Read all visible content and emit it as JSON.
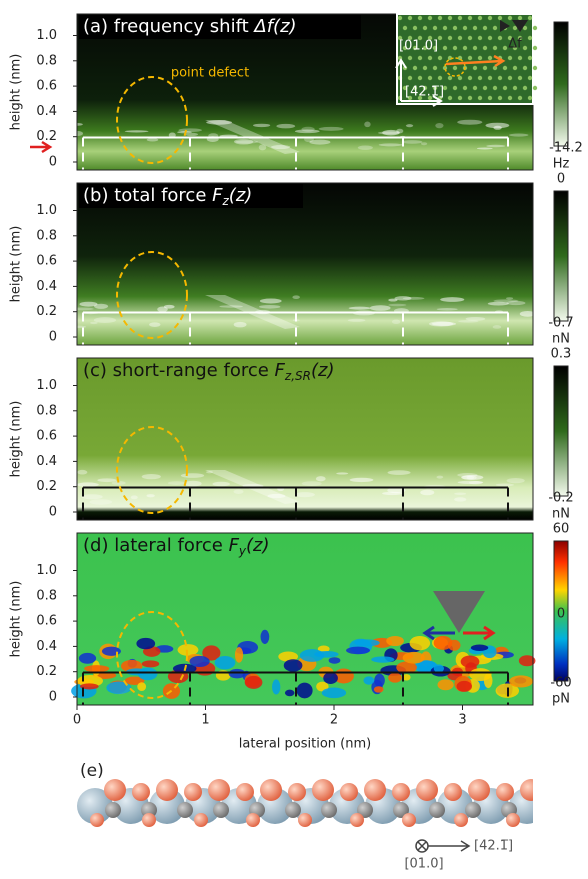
{
  "panels": [
    {
      "title": [
        {
          "text": "(a) frequency shift "
        },
        {
          "text": "Δf(z)",
          "italic": true
        }
      ],
      "cbar": {
        "labels": [
          "-14.2"
        ],
        "unit": "Hz"
      }
    },
    {
      "title": [
        {
          "text": "(b) total force "
        },
        {
          "text": "F",
          "italic": true
        },
        {
          "text": "z",
          "italic": true,
          "sub": true
        },
        {
          "text": "(z)",
          "italic": true
        }
      ],
      "cbar": {
        "labels": [
          "0",
          "-0.7"
        ],
        "unit": "nN"
      }
    },
    {
      "title": [
        {
          "text": "(c) short-range force "
        },
        {
          "text": "F",
          "italic": true
        },
        {
          "text": "z,SR",
          "italic": true,
          "sub": true
        },
        {
          "text": "(z)",
          "italic": true
        }
      ],
      "cbar": {
        "labels": [
          "0.3",
          "-0.2"
        ],
        "unit": "nN"
      }
    },
    {
      "title": [
        {
          "text": "(d) lateral force "
        },
        {
          "text": "F",
          "italic": true
        },
        {
          "text": "y",
          "italic": true,
          "sub": true
        },
        {
          "text": "(z)",
          "italic": true
        }
      ],
      "cbar": {
        "labels": [
          "60",
          "0",
          "-60"
        ],
        "unit": "pN"
      }
    }
  ],
  "ylabel": "height (nm)",
  "yticks": [
    "0",
    "0.2",
    "0.4",
    "0.6",
    "0.8",
    "1.0"
  ],
  "xticks": [
    "0",
    "1",
    "2",
    "3"
  ],
  "xlabel": "lateral position (nm)",
  "annotation": "point defect",
  "inset": {
    "dir1": "[01.0]",
    "dir2": "[42.1̅]",
    "df": "Δf"
  },
  "structure": {
    "label": "(e)",
    "dir1": "[01.0]",
    "dir2": "[42.1̅]"
  }
}
